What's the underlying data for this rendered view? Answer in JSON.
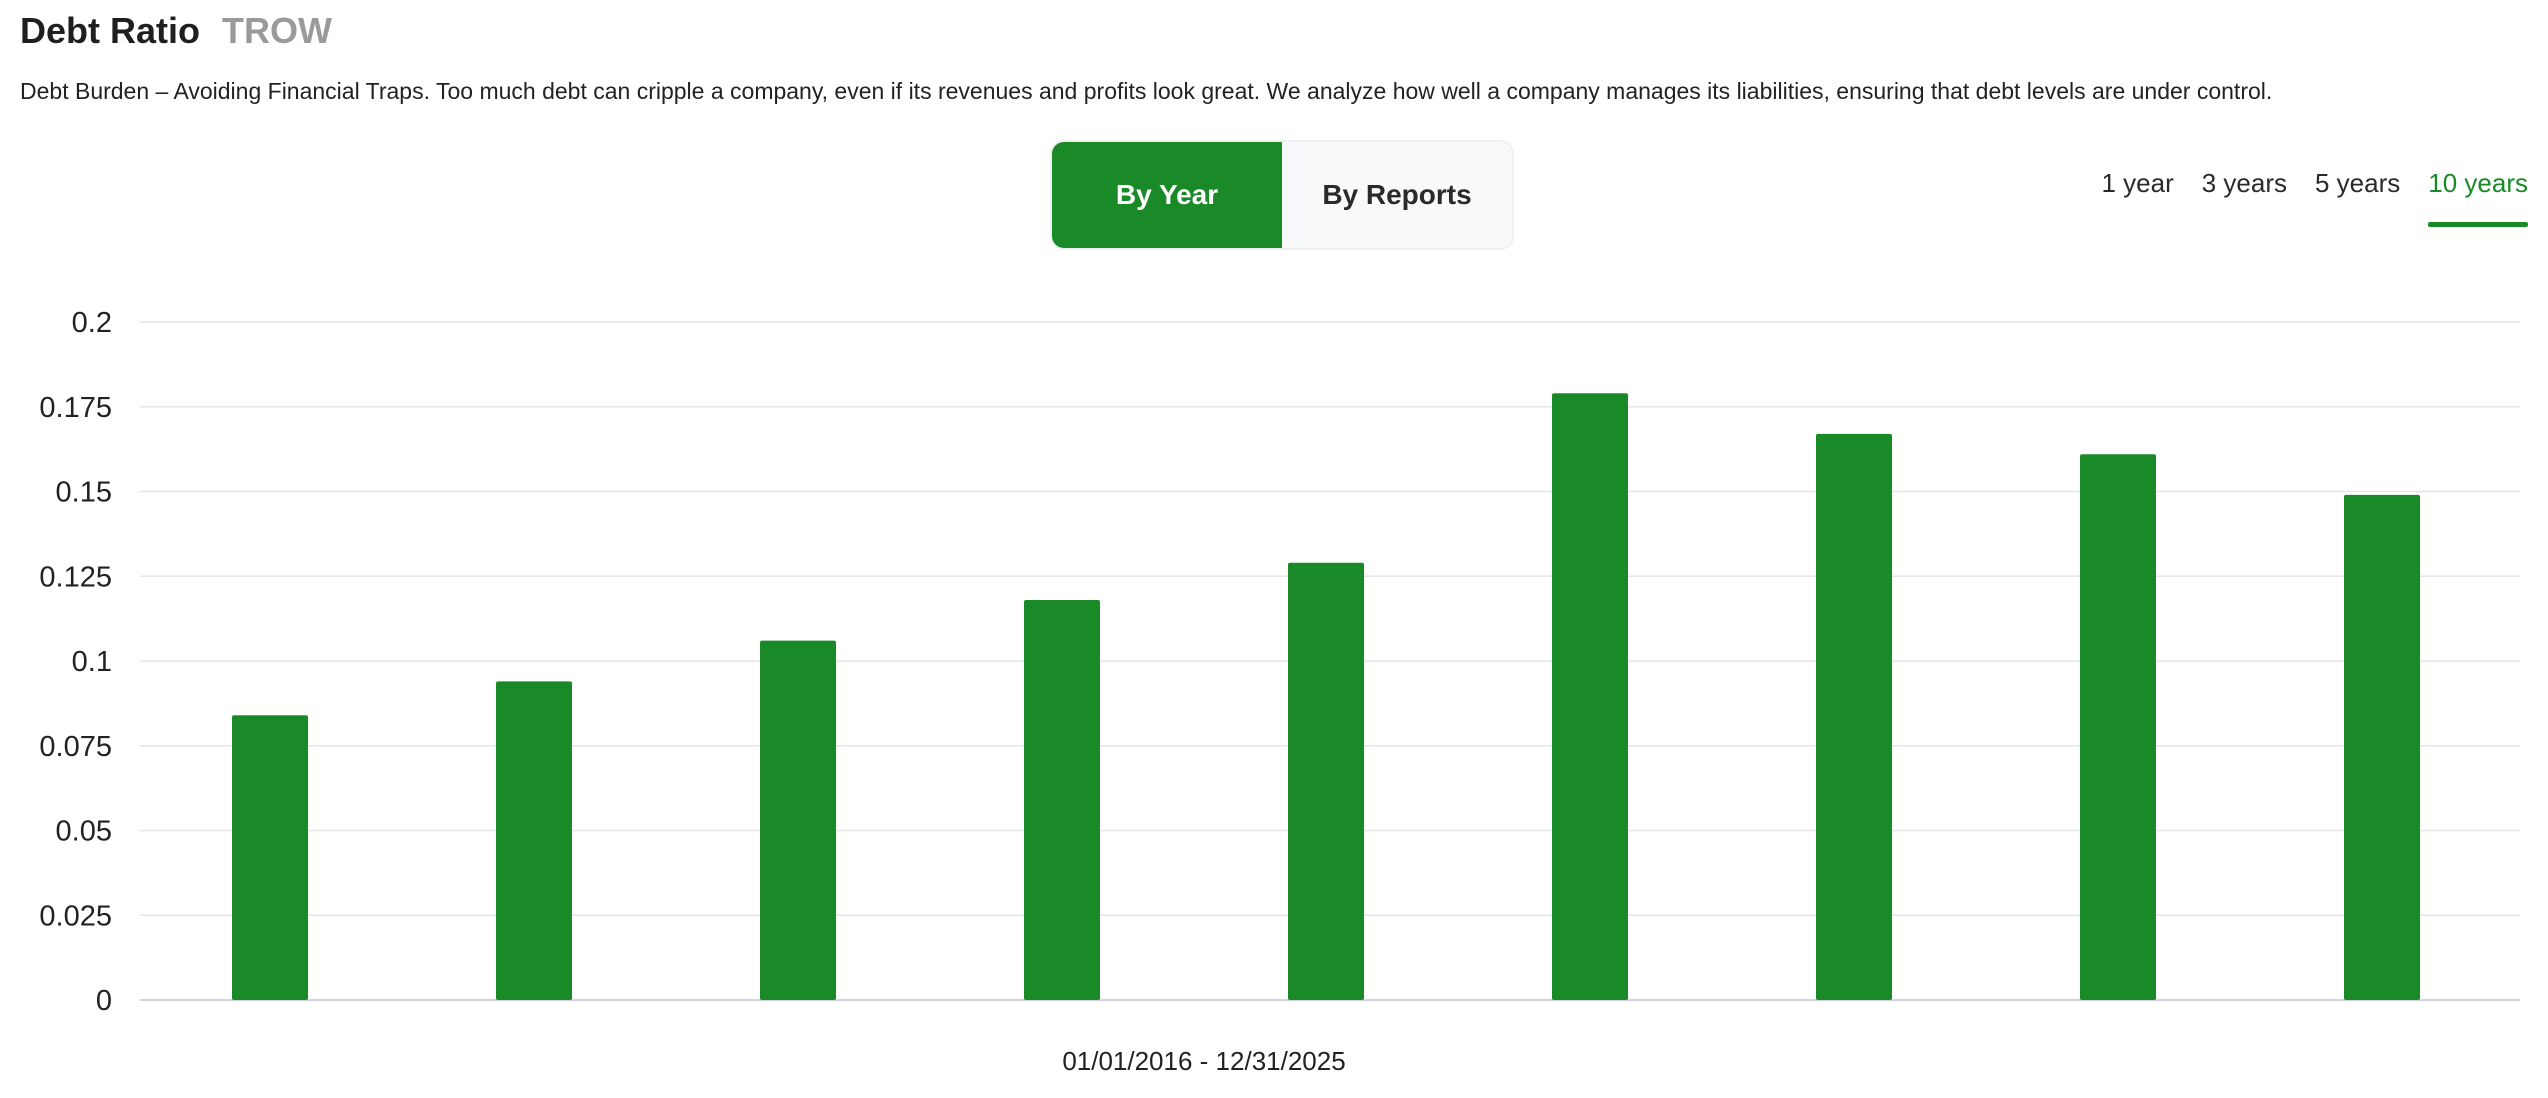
{
  "header": {
    "title": "Debt Ratio",
    "ticker": "TROW"
  },
  "description": "Debt Burden – Avoiding Financial Traps. Too much debt can cripple a company, even if its revenues and profits look great. We analyze how well a company manages its liabilities, ensuring that debt levels are under control.",
  "view_toggle": {
    "by_year": "By Year",
    "by_reports": "By Reports",
    "selected": "By Year"
  },
  "periods": [
    {
      "label": "1 year",
      "active": false
    },
    {
      "label": "3 years",
      "active": false
    },
    {
      "label": "5 years",
      "active": false
    },
    {
      "label": "10 years",
      "active": true
    }
  ],
  "colors": {
    "accent": "#1a8a28",
    "bar": "#1a8a28",
    "grid": "#e6e6e6"
  },
  "chart_data": {
    "type": "bar",
    "values": [
      0.084,
      0.094,
      0.106,
      0.118,
      0.129,
      0.179,
      0.167,
      0.161,
      0.149
    ],
    "ylim": [
      0,
      0.2
    ],
    "yticks": [
      "0",
      "0.025",
      "0.05",
      "0.075",
      "0.1",
      "0.125",
      "0.15",
      "0.175",
      "0.2"
    ],
    "xlabel": "01/01/2016 - 12/31/2025",
    "grid": true
  }
}
